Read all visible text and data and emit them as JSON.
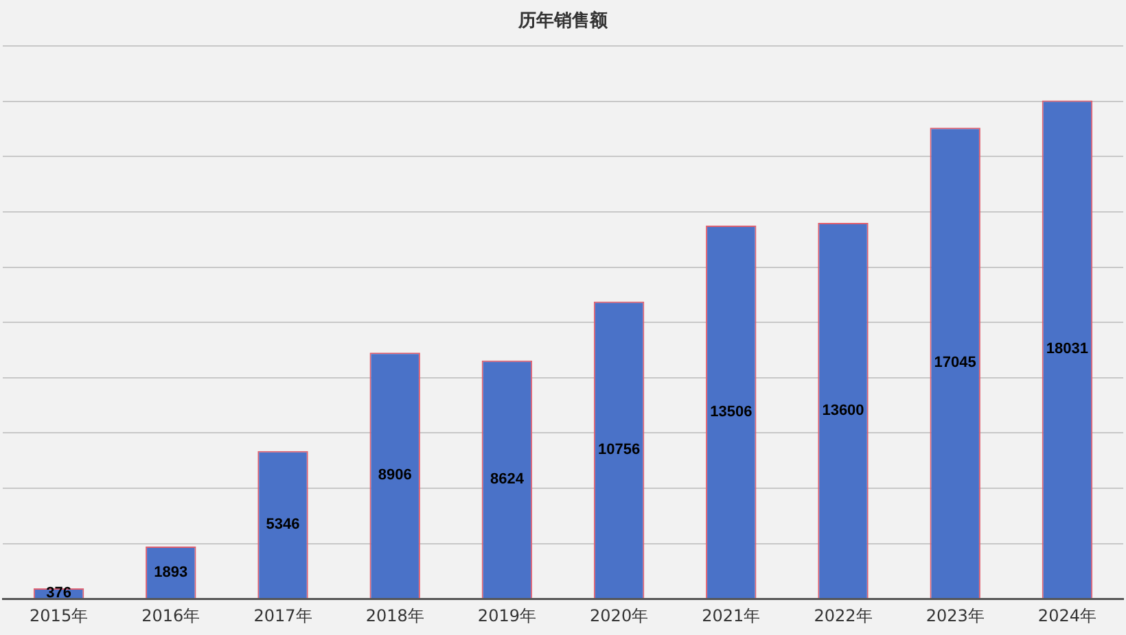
{
  "chart_data": {
    "type": "bar",
    "title": "历年销售额",
    "categories": [
      "2015年",
      "2016年",
      "2017年",
      "2018年",
      "2019年",
      "2020年",
      "2021年",
      "2022年",
      "2023年",
      "2024年"
    ],
    "values": [
      376,
      1893,
      5346,
      8906,
      8624,
      10756,
      13506,
      13600,
      17045,
      18031
    ],
    "color": "#4a72c8",
    "ylim": [
      0,
      20000
    ],
    "yticks": [
      {
        "value": 0,
        "label": null
      },
      {
        "value": 2000,
        "label": null
      },
      {
        "value": 4000,
        "label": null
      },
      {
        "value": 6000,
        "label": null
      },
      {
        "value": 8000,
        "label": null
      },
      {
        "value": 10000,
        "label": null
      },
      {
        "value": 12000,
        "label": null
      },
      {
        "value": 14000,
        "label": null
      },
      {
        "value": 16000,
        "label": null
      },
      {
        "value": 18000,
        "label": null
      },
      {
        "value": 20000,
        "label": null
      }
    ],
    "tick_labels": "x",
    "grid": "y",
    "data_labels": true,
    "legend": false
  }
}
